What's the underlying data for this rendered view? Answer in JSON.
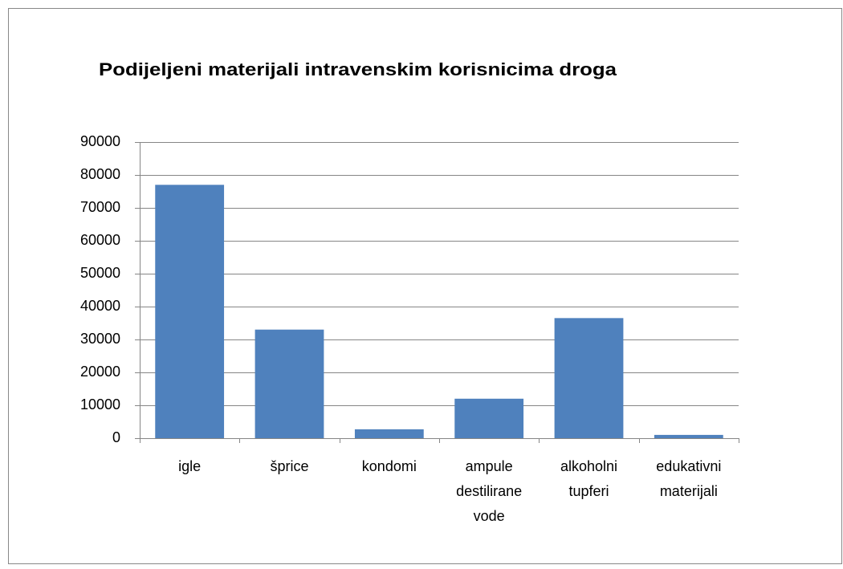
{
  "chart_data": {
    "type": "bar",
    "title": "Podijeljeni materijali intravenskim korisnicima droga",
    "categories": [
      "igle",
      "šprice",
      "kondomi",
      "ampule destilirane vode",
      "alkoholni tupferi",
      "edukativni materijali"
    ],
    "values": [
      77000,
      33000,
      2700,
      12000,
      36500,
      1000
    ],
    "color": "#4f81bd",
    "ylim": [
      0,
      90000
    ],
    "yticks": [
      0,
      10000,
      20000,
      30000,
      40000,
      50000,
      60000,
      70000,
      80000,
      90000
    ],
    "grid": true
  }
}
